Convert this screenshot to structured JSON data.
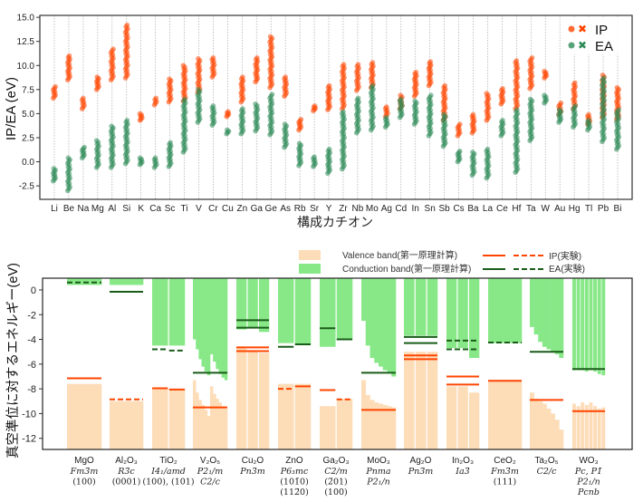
{
  "chart_data": [
    {
      "type": "scatter",
      "xlabel": "構成カチオン",
      "ylabel": "IP/EA (eV)",
      "ylim": [
        -3.9,
        15.2
      ],
      "yticks": [
        "-2.5",
        "0.0",
        "2.5",
        "5.0",
        "7.5",
        "10.0",
        "12.5",
        "15.0"
      ],
      "grid": "vertical dotted per cation",
      "legend": {
        "placement": "top-right",
        "entries": [
          "IP",
          "EA"
        ]
      },
      "colors": {
        "IP": "#ff4500",
        "EA": "#2e8b57"
      },
      "categories": [
        "Li",
        "Be",
        "Na",
        "Mg",
        "Al",
        "Si",
        "K",
        "Ca",
        "Sc",
        "Ti",
        "V",
        "Cr",
        "Cu",
        "Zn",
        "Ga",
        "Ge",
        "As",
        "Rb",
        "Sr",
        "Y",
        "Zr",
        "Nb",
        "Mo",
        "Ag",
        "Cd",
        "In",
        "Sn",
        "Sb",
        "Cs",
        "Ba",
        "La",
        "Ce",
        "Hf",
        "Ta",
        "W",
        "Au",
        "Hg",
        "Tl",
        "Pb",
        "Bi"
      ],
      "series": [
        {
          "name": "IP",
          "ranges": [
            [
              6.6,
              7.8
            ],
            [
              8.5,
              11
            ],
            [
              5.5,
              6.6
            ],
            [
              7.5,
              8.8
            ],
            [
              8.5,
              11.7
            ],
            [
              8.7,
              14.2
            ],
            [
              4.3,
              5
            ],
            [
              5.9,
              6.6
            ],
            [
              6.2,
              8.6
            ],
            [
              6.3,
              10
            ],
            [
              7.2,
              10.7
            ],
            [
              8.8,
              10.8
            ],
            [
              4.7,
              5.2
            ],
            [
              6.2,
              8.8
            ],
            [
              8.3,
              10.8
            ],
            [
              7.7,
              13
            ],
            [
              6.8,
              8.8
            ],
            [
              3.3,
              4.4
            ],
            [
              5.3,
              5.8
            ],
            [
              5.4,
              7.9
            ],
            [
              5.5,
              10.1
            ],
            [
              7.4,
              10.1
            ],
            [
              7.7,
              10.3
            ],
            [
              4.7,
              5.7
            ],
            [
              5.5,
              6.9
            ],
            [
              6.8,
              9.3
            ],
            [
              7.9,
              10.4
            ],
            [
              4.3,
              7.9
            ],
            [
              2.7,
              3.9
            ],
            [
              3,
              4.9
            ],
            [
              4.3,
              7.1
            ],
            [
              6,
              7.6
            ],
            [
              5.5,
              10.5
            ],
            [
              7.6,
              10.8
            ],
            [
              8.7,
              9.4
            ],
            [
              4.9,
              6.1
            ],
            [
              5.5,
              8.2
            ],
            [
              3.9,
              4.9
            ],
            [
              4.6,
              9
            ],
            [
              4.4,
              7.7
            ]
          ]
        },
        {
          "name": "EA",
          "ranges": [
            [
              -2,
              -0.7
            ],
            [
              -3,
              0.4
            ],
            [
              0.4,
              1.5
            ],
            [
              -0.6,
              2.2
            ],
            [
              -0.6,
              3.7
            ],
            [
              -0.2,
              4.3
            ],
            [
              -0.3,
              0.4
            ],
            [
              -0.6,
              0.4
            ],
            [
              -0.5,
              2
            ],
            [
              1,
              6.5
            ],
            [
              4.1,
              7.5
            ],
            [
              3.8,
              5.8
            ],
            [
              2.9,
              3.3
            ],
            [
              2.9,
              5.5
            ],
            [
              3.2,
              6
            ],
            [
              2.8,
              7
            ],
            [
              1.5,
              3.9
            ],
            [
              -0.4,
              1.9
            ],
            [
              -0.5,
              0.5
            ],
            [
              -1.2,
              1.3
            ],
            [
              -0.75,
              5.2
            ],
            [
              3,
              6.6
            ],
            [
              3.3,
              7.9
            ],
            [
              3.6,
              4.6
            ],
            [
              4.6,
              6.5
            ],
            [
              3.9,
              6.3
            ],
            [
              2.7,
              6.9
            ],
            [
              1.6,
              4.9
            ],
            [
              0,
              1.1
            ],
            [
              -1.4,
              1
            ],
            [
              -1.7,
              1.3
            ],
            [
              2.7,
              4.3
            ],
            [
              -1.1,
              5.4
            ],
            [
              2.2,
              6.5
            ],
            [
              6.1,
              6.9
            ],
            [
              4.1,
              5.4
            ],
            [
              3.6,
              5.8
            ],
            [
              3.3,
              4.3
            ],
            [
              2.1,
              8.7
            ],
            [
              1.3,
              5.4
            ]
          ]
        }
      ]
    },
    {
      "type": "bar",
      "ylabel": "真空準位に対するエネルギー(eV)",
      "ylim": [
        -12.9,
        0.95
      ],
      "yticks": [
        "0",
        "-2",
        "-4",
        "-6",
        "-8",
        "-10",
        "-12"
      ],
      "legend": {
        "placement": "top-right",
        "valence": "Valence band(第一原理計算)",
        "conduction": "Conduction band(第一原理計算)",
        "ip": "IP(実験)",
        "ea": "EA(実験)"
      },
      "colors": {
        "valence": "#fddcb8",
        "conduction": "#88e888",
        "ip": "#ff4500",
        "ea": "#1a5c1a"
      },
      "materials": [
        {
          "formula": "MgO",
          "lines": [
            "Fm3̄m",
            "(100)"
          ],
          "cols": [
            {
              "vb": -7.6,
              "cb": 0.4
            }
          ],
          "ip": [
            {
              "v": -7.15,
              "style": "solid"
            }
          ],
          "ea": [
            {
              "v": 0.6,
              "style": "dashed"
            }
          ]
        },
        {
          "formula": "Al₂O₃",
          "lines": [
            "R3̄c",
            "(0001)"
          ],
          "cols": [
            {
              "vb": -9.0,
              "cb": 0.4
            }
          ],
          "ip": [
            {
              "v": -8.85,
              "style": "dashed"
            }
          ],
          "ea": [
            {
              "v": -0.15,
              "style": "solid"
            }
          ]
        },
        {
          "formula": "TiO₂",
          "lines": [
            "I4₁/amd",
            "(100), (101)"
          ],
          "cols": [
            {
              "vb": -8.0,
              "cb": -4.5
            },
            {
              "vb": -8.0,
              "cb": -4.5
            }
          ],
          "ip": [
            {
              "v": -7.95,
              "style": "solid",
              "col": 0
            },
            {
              "v": -8.05,
              "style": "solid",
              "col": 1
            }
          ],
          "ea": [
            {
              "v": -4.8,
              "style": "dashed",
              "col": 0
            },
            {
              "v": -4.9,
              "style": "dashed",
              "col": 1
            }
          ]
        },
        {
          "formula": "V₂O₅",
          "lines": [
            "P2₁/m",
            "C2/c"
          ],
          "cols": [
            {
              "vb": -7.3,
              "cb": -4
            },
            {
              "vb": -8.3,
              "cb": -4.8
            },
            {
              "vb": -8.9,
              "cb": -5.6
            },
            {
              "vb": -9.3,
              "cb": -6.2
            },
            {
              "vb": -9.7,
              "cb": -6.6
            },
            {
              "vb": -10.2,
              "cb": -6.9
            },
            {
              "vb": -7.8,
              "cb": -5.2
            },
            {
              "vb": -8.4,
              "cb": -5.8
            },
            {
              "vb": -8.8,
              "cb": -6.4
            },
            {
              "vb": -9.1,
              "cb": -6.8
            },
            {
              "vb": -9.4,
              "cb": -7.1
            },
            {
              "vb": -9.6,
              "cb": -7.3
            }
          ],
          "ip": [
            {
              "v": -9.5,
              "style": "solid"
            }
          ],
          "ea": [
            {
              "v": -6.7,
              "style": "solid"
            }
          ]
        },
        {
          "formula": "Cu₂O",
          "lines": [
            "Pn3̄m"
          ],
          "cols": [
            {
              "vb": -4.6,
              "cb": -3.2
            },
            {
              "vb": -5.0,
              "cb": -3.0
            },
            {
              "vb": -5.1,
              "cb": -3.4
            }
          ],
          "ip": [
            {
              "v": -4.65,
              "style": "solid"
            },
            {
              "v": -4.95,
              "style": "solid"
            }
          ],
          "ea": [
            {
              "v": -2.45,
              "style": "solid"
            },
            {
              "v": -3.05,
              "style": "solid"
            }
          ]
        },
        {
          "formula": "ZnO",
          "lines": [
            "P6₃mc",
            "(101̄0)",
            "(112̄0)"
          ],
          "cols": [
            {
              "vb": -7.6,
              "cb": -4.3
            },
            {
              "vb": -7.6,
              "cb": -4.4
            }
          ],
          "ip": [
            {
              "v": -8.0,
              "style": "dashed",
              "col": 0
            },
            {
              "v": -7.8,
              "style": "solid",
              "col": 1
            }
          ],
          "ea": [
            {
              "v": -4.6,
              "style": "solid",
              "col": 0
            },
            {
              "v": -4.4,
              "style": "solid",
              "col": 1
            }
          ]
        },
        {
          "formula": "Ga₂O₃",
          "lines": [
            "C2/m",
            "(2̄01)",
            "(100)"
          ],
          "cols": [
            {
              "vb": -9.4,
              "cb": -4.6
            },
            {
              "vb": -8.8,
              "cb": -4.05
            }
          ],
          "ip": [
            {
              "v": -8.1,
              "style": "solid",
              "col": 0
            },
            {
              "v": -8.85,
              "style": "dashed",
              "col": 1
            }
          ],
          "ea": [
            {
              "v": -3.1,
              "style": "solid",
              "col": 0
            },
            {
              "v": -4.0,
              "style": "solid",
              "col": 1
            }
          ]
        },
        {
          "formula": "MoO₃",
          "lines": [
            "Pnma",
            "P2₁/n"
          ],
          "cols": [
            {
              "vb": -7.3,
              "cb": -2.5
            },
            {
              "vb": -8.5,
              "cb": -4.5
            },
            {
              "vb": -8.9,
              "cb": -5.5
            },
            {
              "vb": -9.1,
              "cb": -5.9
            },
            {
              "vb": -9.2,
              "cb": -6.2
            },
            {
              "vb": -9.3,
              "cb": -6.5
            },
            {
              "vb": -9.4,
              "cb": -6.7
            },
            {
              "vb": -9.5,
              "cb": -7.0
            }
          ],
          "ip": [
            {
              "v": -9.7,
              "style": "solid"
            }
          ],
          "ea": [
            {
              "v": -6.7,
              "style": "solid"
            }
          ]
        },
        {
          "formula": "Ag₂O",
          "lines": [
            "Pn3̄m"
          ],
          "cols": [
            {
              "vb": -5.0,
              "cb": -3.7
            },
            {
              "vb": -5.0,
              "cb": -3.7
            },
            {
              "vb": -5.0,
              "cb": -3.7
            }
          ],
          "ip": [
            {
              "v": -5.3,
              "style": "solid"
            },
            {
              "v": -5.6,
              "style": "solid"
            }
          ],
          "ea": [
            {
              "v": -3.8,
              "style": "solid"
            },
            {
              "v": -4.3,
              "style": "solid"
            }
          ]
        },
        {
          "formula": "In₂O₃",
          "lines": [
            "Ia3̄"
          ],
          "cols": [
            {
              "vb": -7.8,
              "cb": -4.7
            },
            {
              "vb": -7.8,
              "cb": -4.7
            },
            {
              "vb": -8.3,
              "cb": -5.5
            }
          ],
          "ip": [
            {
              "v": -7.0,
              "style": "solid"
            },
            {
              "v": -7.65,
              "style": "solid"
            }
          ],
          "ea": [
            {
              "v": -4.1,
              "style": "dashed"
            },
            {
              "v": -4.8,
              "style": "dashed"
            }
          ]
        },
        {
          "formula": "CeO₂",
          "lines": [
            "Fm3̄m",
            "(111)"
          ],
          "cols": [
            {
              "vb": -7.4,
              "cb": -4.3
            }
          ],
          "ip": [
            {
              "v": -7.35,
              "style": "solid"
            }
          ],
          "ea": [
            {
              "v": -4.25,
              "style": "dashed"
            }
          ]
        },
        {
          "formula": "Ta₂O₅",
          "lines": [
            "C2/c"
          ],
          "cols": [
            {
              "vb": -8.3,
              "cb": -3.0
            },
            {
              "vb": -8.8,
              "cb": -3.6
            },
            {
              "vb": -9.0,
              "cb": -4.2
            },
            {
              "vb": -9.2,
              "cb": -4.6
            },
            {
              "vb": -9.6,
              "cb": -4.8
            },
            {
              "vb": -10.0,
              "cb": -5.0
            },
            {
              "vb": -10.5,
              "cb": -5.2
            },
            {
              "vb": -11.3,
              "cb": -5.5
            }
          ],
          "ip": [
            {
              "v": -8.9,
              "style": "solid"
            }
          ],
          "ea": [
            {
              "v": -5.0,
              "style": "solid"
            }
          ]
        },
        {
          "formula": "WO₃",
          "lines": [
            "Pc, P1̄",
            "P2₁/n",
            "Pcnb"
          ],
          "cols": [
            {
              "vb": -9.2,
              "cb": -6.5
            },
            {
              "vb": -9.4,
              "cb": -6.5
            },
            {
              "vb": -9.1,
              "cb": -6.5
            },
            {
              "vb": -9.3,
              "cb": -6.6
            },
            {
              "vb": -9.1,
              "cb": -6.5
            },
            {
              "vb": -9.4,
              "cb": -6.6
            },
            {
              "vb": -9.6,
              "cb": -6.8
            },
            {
              "vb": -9.5,
              "cb": -6.9
            }
          ],
          "ip": [
            {
              "v": -9.8,
              "style": "solid"
            }
          ],
          "ea": [
            {
              "v": -6.4,
              "style": "solid"
            }
          ]
        }
      ]
    }
  ]
}
